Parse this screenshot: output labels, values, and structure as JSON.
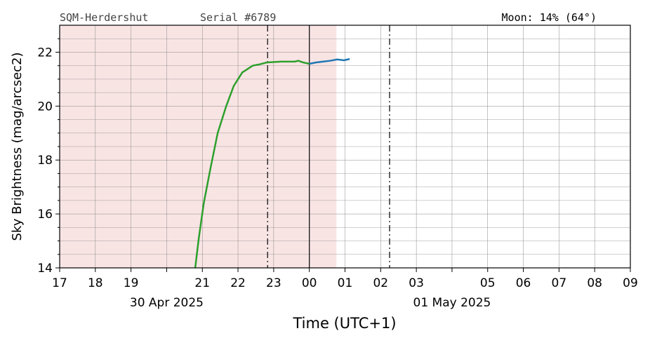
{
  "chart_data": {
    "type": "line",
    "header_left": "SQM-Herdershut",
    "header_mid": "Serial #6789",
    "header_right": "Moon: 14% (64°)",
    "xlabel": "Time (UTC+1)",
    "ylabel": "Sky Brightness (mag/arcsec2)",
    "xlim": [
      17,
      33
    ],
    "ylim": [
      14,
      23
    ],
    "xticks": [
      17,
      18,
      19,
      {
        "value": 20
      },
      21,
      22,
      23,
      {
        "value": 24,
        "label": "00"
      },
      {
        "value": 25,
        "label": "01"
      },
      {
        "value": 26,
        "label": "02"
      },
      {
        "value": 27,
        "label": "03"
      },
      {
        "value": 28
      },
      {
        "value": 29,
        "label": "05"
      },
      {
        "value": 30,
        "label": "06"
      },
      {
        "value": 31,
        "label": "07"
      },
      {
        "value": 32,
        "label": "08"
      },
      {
        "value": 33,
        "label": "09"
      }
    ],
    "date_labels": [
      {
        "x": 20,
        "label": "30 Apr 2025"
      },
      {
        "x": 28,
        "label": "01 May 2025"
      }
    ],
    "yticks": [
      14,
      16,
      18,
      20,
      22
    ],
    "yminor": [
      14.5,
      15,
      15.5,
      16.5,
      17,
      17.5,
      18.5,
      19,
      19.5,
      20.5,
      21,
      21.5,
      22.5
    ],
    "grid": true,
    "shade": {
      "from": 17,
      "to": 24.76,
      "color": "#f9e4e4"
    },
    "vlines": [
      {
        "x": 22.83,
        "style": "dashdot"
      },
      {
        "x": 24.0,
        "style": "solid"
      },
      {
        "x": 26.25,
        "style": "dashdot"
      }
    ],
    "series": [
      {
        "color": "#2ca02c",
        "x": [
          20.8,
          20.9,
          21.04,
          21.23,
          21.43,
          21.67,
          21.88,
          22.12,
          22.41,
          22.61,
          22.81,
          23.2,
          23.59,
          23.69,
          23.83,
          24.0
        ],
        "values": [
          14.0,
          15.1,
          16.4,
          17.7,
          19.0,
          20.0,
          20.75,
          21.25,
          21.5,
          21.55,
          21.62,
          21.65,
          21.65,
          21.68,
          21.62,
          21.57
        ]
      },
      {
        "color": "#1f77b4",
        "x": [
          24.0,
          24.18,
          24.38,
          24.58,
          24.78,
          24.97,
          25.13
        ],
        "values": [
          21.57,
          21.62,
          21.65,
          21.68,
          21.73,
          21.7,
          21.75
        ]
      }
    ]
  }
}
